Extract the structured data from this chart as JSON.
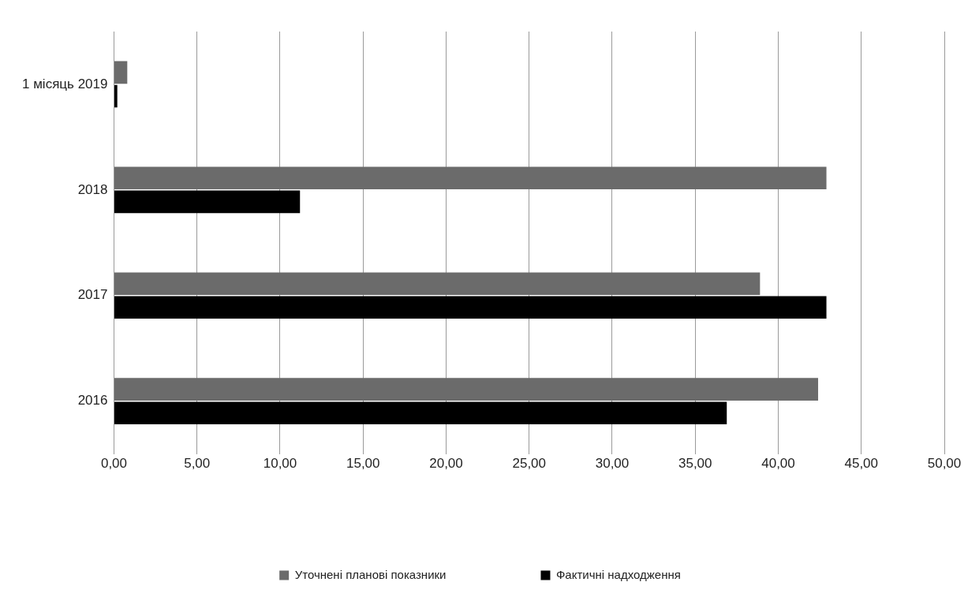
{
  "chart_data": {
    "type": "bar",
    "orientation": "horizontal",
    "categories": [
      "1 місяць 2019",
      "2018",
      "2017",
      "2016"
    ],
    "series": [
      {
        "name": "Уточнені планові показники",
        "color": "#6b6b6b",
        "values": [
          0.8,
          42.9,
          38.9,
          42.4
        ]
      },
      {
        "name": "Фактичні надходження",
        "color": "#000000",
        "values": [
          0.2,
          11.2,
          42.9,
          36.9
        ]
      }
    ],
    "xlim": [
      0,
      50
    ],
    "xticks": [
      {
        "value": 0,
        "label": "0,00"
      },
      {
        "value": 5,
        "label": "5,00"
      },
      {
        "value": 10,
        "label": "10,00"
      },
      {
        "value": 15,
        "label": "15,00"
      },
      {
        "value": 20,
        "label": "20,00"
      },
      {
        "value": 25,
        "label": "25,00"
      },
      {
        "value": 30,
        "label": "30,00"
      },
      {
        "value": 35,
        "label": "35,00"
      },
      {
        "value": 40,
        "label": "40,00"
      },
      {
        "value": 45,
        "label": "45,00"
      },
      {
        "value": 50,
        "label": "50,00"
      }
    ],
    "grid": "x",
    "legend": "bottom"
  }
}
